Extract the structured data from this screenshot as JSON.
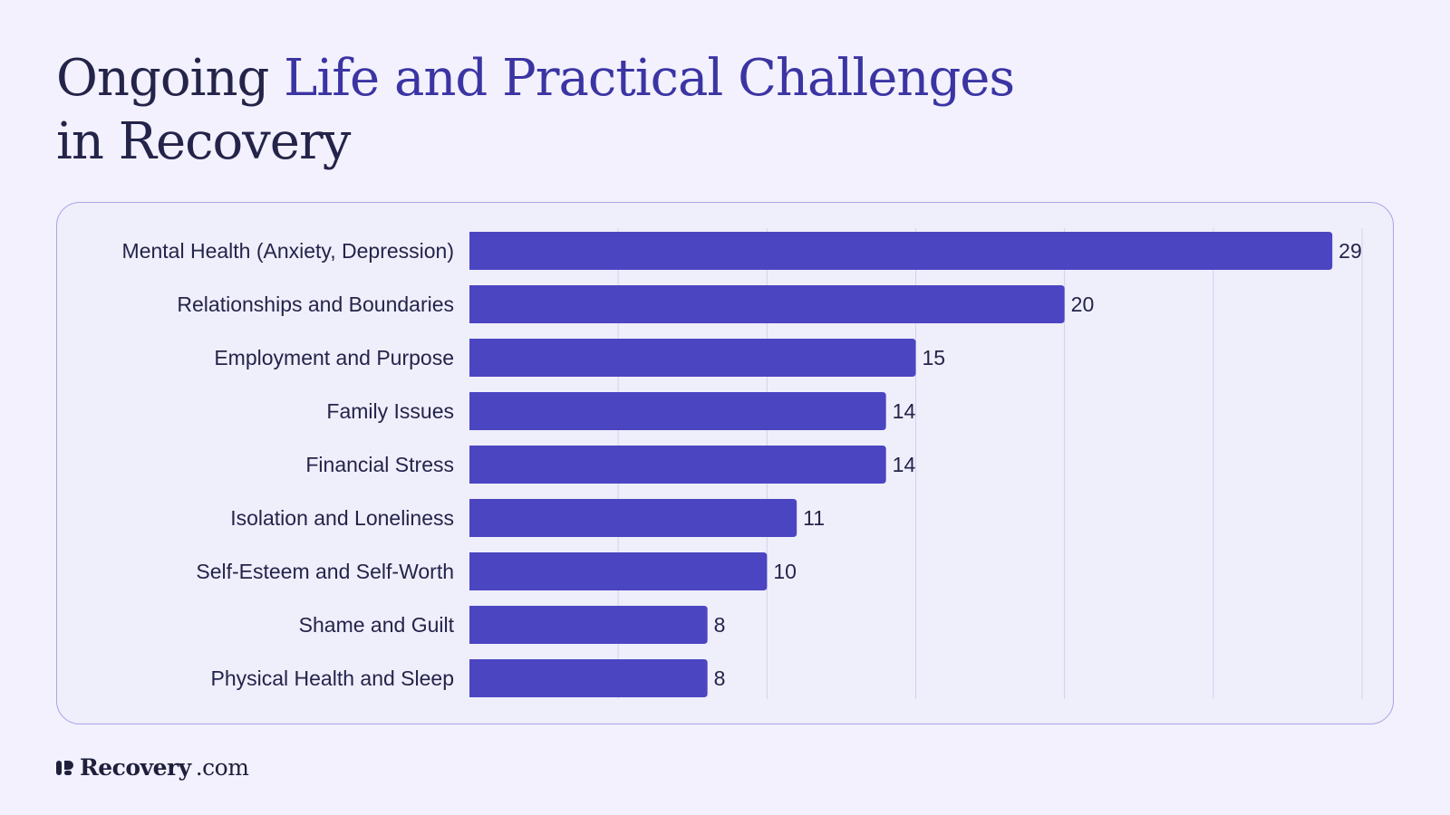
{
  "title": {
    "prefix": "Ongoing ",
    "accent": "Life and Practical Challenges",
    "line2": "in Recovery"
  },
  "brand": {
    "name": "Recovery",
    "tld": ".com",
    "logo_icon": "recovery-logo-icon"
  },
  "colors": {
    "background": "#f2f1fd",
    "bar": "#4b45c2",
    "title_accent": "#3b34a3",
    "text": "#24244a",
    "card_border": "#a9a5e6",
    "gridline": "#d4d2ec"
  },
  "chart_data": {
    "type": "bar",
    "orientation": "horizontal",
    "categories": [
      "Mental Health (Anxiety, Depression)",
      "Relationships and Boundaries",
      "Employment and Purpose",
      "Family Issues",
      "Financial Stress",
      "Isolation and Loneliness",
      "Self-Esteem and Self-Worth",
      "Shame and Guilt",
      "Physical Health and Sleep"
    ],
    "values": [
      29,
      20,
      15,
      14,
      14,
      11,
      10,
      8,
      8
    ],
    "xlim": [
      0,
      30
    ],
    "grid": true,
    "data_labels": true,
    "legend": false
  }
}
